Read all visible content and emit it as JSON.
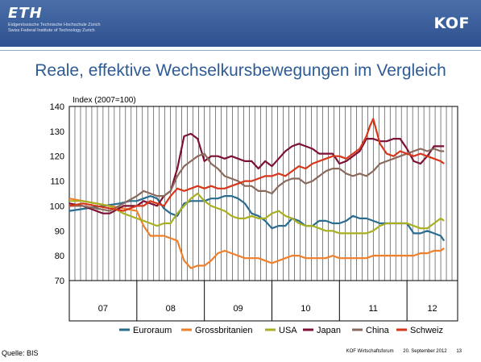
{
  "header": {
    "eth_logo": "ETH",
    "eth_subline_1": "Eidgenössische Technische Hochschule Zürich",
    "eth_subline_2": "Swiss Federal Institute of Technology Zurich",
    "kof_logo": "KOF"
  },
  "slide_title": "Reale, effektive Wechselkursbewegungen im Vergleich",
  "source": "Quelle: BIS",
  "footer": {
    "org": "KOF Wirtschaftsforum",
    "date": "20. September 2012",
    "page": "13"
  },
  "colors": {
    "Euroraum": "#2a6c8f",
    "Grossbritanien": "#f07f2a",
    "USA": "#a8b020",
    "Japan": "#7d1033",
    "China": "#8a6a5c",
    "Schweiz": "#d6361a",
    "title": "#2d5b95",
    "banner": "#3a5d9a"
  },
  "chart_data": {
    "type": "line",
    "title": "",
    "ylabel": "Index (2007=100)",
    "xlabel": "",
    "ylim": [
      70,
      140
    ],
    "yticks": [
      70,
      80,
      90,
      100,
      110,
      120,
      130,
      140
    ],
    "grid": "vertical",
    "legend": "bottom",
    "year_labels": [
      "07",
      "08",
      "09",
      "10",
      "11",
      "12"
    ],
    "x_start": 2007.0,
    "x_end": 2012.75,
    "series": [
      {
        "name": "Euroraum",
        "x": [
          2007.0,
          2007.25,
          2007.5,
          2007.75,
          2007.9,
          2008.0,
          2008.1,
          2008.2,
          2008.3,
          2008.4,
          2008.5,
          2008.6,
          2008.7,
          2008.8,
          2008.9,
          2009.0,
          2009.1,
          2009.2,
          2009.3,
          2009.4,
          2009.5,
          2009.6,
          2009.7,
          2009.8,
          2009.9,
          2010.0,
          2010.1,
          2010.2,
          2010.3,
          2010.4,
          2010.5,
          2010.6,
          2010.7,
          2010.8,
          2010.9,
          2011.0,
          2011.1,
          2011.2,
          2011.3,
          2011.4,
          2011.5,
          2011.6,
          2011.7,
          2011.8,
          2011.9,
          2012.0,
          2012.1,
          2012.2,
          2012.3,
          2012.4,
          2012.5,
          2012.55
        ],
        "values": [
          98,
          99,
          100,
          101,
          102,
          102,
          103,
          104,
          103,
          99,
          97,
          96,
          101,
          102,
          102,
          102,
          103,
          103,
          104,
          104,
          103,
          101,
          97,
          96,
          94,
          91,
          92,
          92,
          95,
          94,
          92,
          92,
          94,
          94,
          93,
          93,
          94,
          96,
          95,
          95,
          94,
          93,
          93,
          93,
          93,
          93,
          89,
          89,
          90,
          89,
          88,
          86
        ]
      },
      {
        "name": "Grossbritanien",
        "x": [
          2007.0,
          2007.2,
          2007.4,
          2007.6,
          2007.8,
          2008.0,
          2008.1,
          2008.2,
          2008.3,
          2008.4,
          2008.5,
          2008.6,
          2008.7,
          2008.8,
          2008.9,
          2009.0,
          2009.1,
          2009.2,
          2009.3,
          2009.4,
          2009.5,
          2009.6,
          2009.7,
          2009.8,
          2009.9,
          2010.0,
          2010.1,
          2010.2,
          2010.3,
          2010.4,
          2010.5,
          2010.6,
          2010.7,
          2010.8,
          2010.9,
          2011.0,
          2011.1,
          2011.2,
          2011.3,
          2011.4,
          2011.5,
          2011.6,
          2011.7,
          2011.8,
          2011.9,
          2012.0,
          2012.1,
          2012.2,
          2012.3,
          2012.4,
          2012.5,
          2012.55
        ],
        "values": [
          103,
          102,
          101,
          100,
          99,
          98,
          92,
          88,
          88,
          88,
          87,
          86,
          78,
          75,
          76,
          76,
          78,
          81,
          82,
          81,
          80,
          79,
          79,
          79,
          78,
          77,
          78,
          79,
          80,
          80,
          79,
          79,
          79,
          79,
          80,
          79,
          79,
          79,
          79,
          79,
          80,
          80,
          80,
          80,
          80,
          80,
          80,
          81,
          81,
          82,
          82,
          83
        ]
      },
      {
        "name": "USA",
        "x": [
          2007.0,
          2007.2,
          2007.4,
          2007.6,
          2007.8,
          2008.0,
          2008.1,
          2008.2,
          2008.3,
          2008.4,
          2008.5,
          2008.6,
          2008.7,
          2008.8,
          2008.9,
          2009.0,
          2009.1,
          2009.2,
          2009.3,
          2009.4,
          2009.5,
          2009.6,
          2009.7,
          2009.8,
          2009.9,
          2010.0,
          2010.1,
          2010.2,
          2010.3,
          2010.4,
          2010.5,
          2010.6,
          2010.7,
          2010.8,
          2010.9,
          2011.0,
          2011.1,
          2011.2,
          2011.3,
          2011.4,
          2011.5,
          2011.6,
          2011.7,
          2011.8,
          2011.9,
          2012.0,
          2012.1,
          2012.2,
          2012.3,
          2012.4,
          2012.5,
          2012.55
        ],
        "values": [
          102,
          102,
          101,
          100,
          97,
          95,
          94,
          93,
          92,
          93,
          93,
          97,
          100,
          103,
          105,
          102,
          100,
          99,
          98,
          96,
          95,
          95,
          96,
          95,
          95,
          97,
          98,
          96,
          95,
          93,
          92,
          92,
          91,
          90,
          90,
          89,
          89,
          89,
          89,
          89,
          90,
          92,
          93,
          93,
          93,
          93,
          92,
          91,
          91,
          93,
          95,
          94
        ]
      },
      {
        "name": "Japan",
        "x": [
          2007.0,
          2007.2,
          2007.4,
          2007.5,
          2007.6,
          2007.8,
          2008.0,
          2008.1,
          2008.2,
          2008.3,
          2008.4,
          2008.5,
          2008.6,
          2008.7,
          2008.8,
          2008.9,
          2009.0,
          2009.1,
          2009.2,
          2009.3,
          2009.4,
          2009.5,
          2009.6,
          2009.7,
          2009.8,
          2009.9,
          2010.0,
          2010.1,
          2010.2,
          2010.3,
          2010.4,
          2010.5,
          2010.6,
          2010.7,
          2010.8,
          2010.9,
          2011.0,
          2011.1,
          2011.2,
          2011.3,
          2011.4,
          2011.5,
          2011.6,
          2011.7,
          2011.8,
          2011.9,
          2012.0,
          2012.1,
          2012.2,
          2012.3,
          2012.4,
          2012.5,
          2012.55
        ],
        "values": [
          101,
          100,
          98,
          97,
          97,
          100,
          100,
          102,
          101,
          100,
          104,
          106,
          115,
          128,
          129,
          127,
          118,
          120,
          120,
          119,
          120,
          119,
          118,
          118,
          115,
          118,
          116,
          119,
          122,
          124,
          125,
          124,
          123,
          121,
          121,
          121,
          117,
          118,
          120,
          122,
          127,
          127,
          126,
          126,
          127,
          127,
          123,
          118,
          117,
          120,
          124,
          124,
          124
        ]
      },
      {
        "name": "China",
        "x": [
          2007.0,
          2007.2,
          2007.4,
          2007.6,
          2007.8,
          2008.0,
          2008.1,
          2008.2,
          2008.3,
          2008.4,
          2008.5,
          2008.6,
          2008.7,
          2008.8,
          2008.9,
          2009.0,
          2009.1,
          2009.2,
          2009.3,
          2009.4,
          2009.5,
          2009.6,
          2009.7,
          2009.8,
          2009.9,
          2010.0,
          2010.1,
          2010.2,
          2010.3,
          2010.4,
          2010.5,
          2010.6,
          2010.7,
          2010.8,
          2010.9,
          2011.0,
          2011.1,
          2011.2,
          2011.3,
          2011.4,
          2011.5,
          2011.6,
          2011.7,
          2011.8,
          2011.9,
          2012.0,
          2012.1,
          2012.2,
          2012.3,
          2012.4,
          2012.5,
          2012.55
        ],
        "values": [
          100,
          100,
          99,
          98,
          101,
          104,
          106,
          105,
          104,
          104,
          106,
          112,
          116,
          118,
          120,
          121,
          117,
          115,
          112,
          111,
          110,
          108,
          108,
          106,
          106,
          105,
          108,
          110,
          111,
          111,
          109,
          110,
          112,
          114,
          115,
          115,
          113,
          112,
          113,
          112,
          114,
          117,
          118,
          119,
          120,
          121,
          122,
          123,
          122,
          123,
          122,
          122
        ]
      },
      {
        "name": "Schweiz",
        "x": [
          2007.0,
          2007.2,
          2007.4,
          2007.6,
          2007.8,
          2008.0,
          2008.1,
          2008.2,
          2008.3,
          2008.4,
          2008.5,
          2008.6,
          2008.7,
          2008.8,
          2008.9,
          2009.0,
          2009.1,
          2009.2,
          2009.3,
          2009.4,
          2009.5,
          2009.6,
          2009.7,
          2009.8,
          2009.9,
          2010.0,
          2010.1,
          2010.2,
          2010.3,
          2010.4,
          2010.5,
          2010.6,
          2010.7,
          2010.8,
          2010.9,
          2011.0,
          2011.1,
          2011.2,
          2011.3,
          2011.4,
          2011.45,
          2011.5,
          2011.6,
          2011.7,
          2011.8,
          2011.9,
          2012.0,
          2012.1,
          2012.2,
          2012.3,
          2012.4,
          2012.5,
          2012.55
        ],
        "values": [
          100,
          101,
          100,
          99,
          98,
          100,
          100,
          102,
          101,
          100,
          104,
          107,
          106,
          107,
          108,
          107,
          108,
          107,
          107,
          108,
          109,
          110,
          110,
          111,
          112,
          112,
          113,
          112,
          114,
          116,
          115,
          117,
          118,
          119,
          120,
          120,
          119,
          121,
          123,
          128,
          132,
          135,
          125,
          121,
          120,
          122,
          121,
          120,
          121,
          120,
          119,
          118,
          117
        ]
      }
    ]
  }
}
